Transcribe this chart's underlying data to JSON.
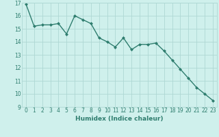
{
  "xlabel": "Humidex (Indice chaleur)",
  "ylabel": "",
  "x": [
    0,
    1,
    2,
    3,
    4,
    5,
    6,
    7,
    8,
    9,
    10,
    11,
    12,
    13,
    14,
    15,
    16,
    17,
    18,
    19,
    20,
    21,
    22,
    23
  ],
  "y": [
    16.9,
    15.2,
    15.3,
    15.3,
    15.4,
    14.6,
    16.0,
    15.7,
    15.4,
    14.3,
    14.0,
    13.6,
    14.3,
    13.4,
    13.8,
    13.8,
    13.9,
    13.3,
    12.6,
    11.9,
    11.2,
    10.5,
    10.0,
    9.5
  ],
  "line_color": "#2e7d6e",
  "marker": "D",
  "marker_size": 2.0,
  "line_width": 1.0,
  "bg_color": "#cff0ec",
  "grid_color": "#aed8d4",
  "tick_color": "#2e7d6e",
  "label_color": "#2e7d6e",
  "ylim": [
    9,
    17
  ],
  "xlim": [
    -0.5,
    23.5
  ],
  "yticks": [
    9,
    10,
    11,
    12,
    13,
    14,
    15,
    16,
    17
  ],
  "xticks": [
    0,
    1,
    2,
    3,
    4,
    5,
    6,
    7,
    8,
    9,
    10,
    11,
    12,
    13,
    14,
    15,
    16,
    17,
    18,
    19,
    20,
    21,
    22,
    23
  ],
  "axis_label_fontsize": 6.5,
  "tick_fontsize": 5.5
}
